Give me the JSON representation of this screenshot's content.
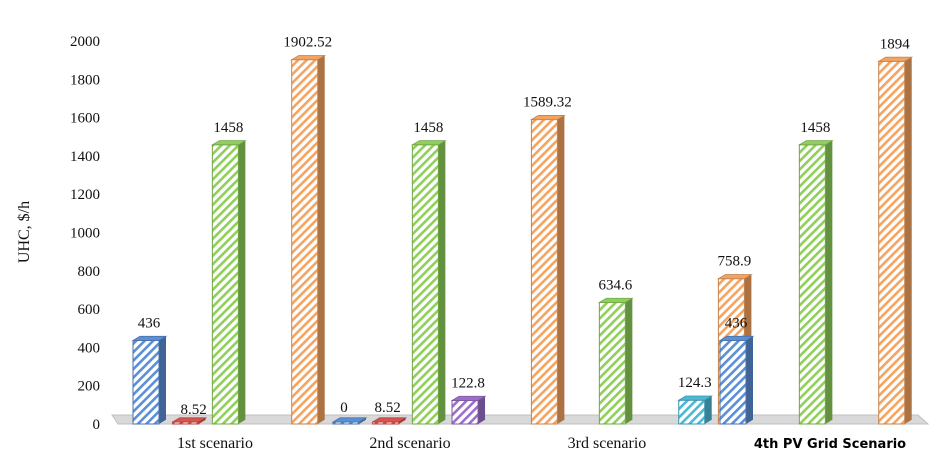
{
  "chart_data": {
    "type": "bar",
    "ylabel": "UHC, $/h",
    "ylim": [
      0,
      2000
    ],
    "yticks": [
      0,
      200,
      400,
      600,
      800,
      1000,
      1200,
      1400,
      1600,
      1800,
      2000
    ],
    "grid": false,
    "legend": "none",
    "categories": [
      "1st scenario",
      "2nd scenario",
      "3rd scenario",
      "4th PV Grid Scenario"
    ],
    "series": [
      {
        "color": "#5b8fd6",
        "values": [
          436,
          0,
          null,
          436
        ],
        "labels": [
          "436",
          "0",
          "",
          "436"
        ]
      },
      {
        "color": "#d9534f",
        "values": [
          8.52,
          8.52,
          null,
          null
        ],
        "labels": [
          "8.52",
          "8.52",
          "",
          ""
        ]
      },
      {
        "color": "#8fcf5a",
        "values": [
          1458,
          1458,
          634.6,
          1458
        ],
        "labels": [
          "1458",
          "1458",
          "634.6",
          "1458"
        ]
      },
      {
        "color": "#9b6fc9",
        "values": [
          null,
          122.8,
          null,
          null
        ],
        "labels": [
          "",
          "122.8",
          "",
          ""
        ]
      },
      {
        "color": "#4bb9d6",
        "values": [
          null,
          null,
          124.3,
          null
        ],
        "labels": [
          "",
          "",
          "124.3",
          ""
        ]
      },
      {
        "color": "#f4a460",
        "values": [
          1902.52,
          1589.32,
          758.9,
          1894
        ],
        "labels": [
          "1902.52",
          "1589.32",
          "758.9",
          "1894"
        ]
      }
    ]
  }
}
